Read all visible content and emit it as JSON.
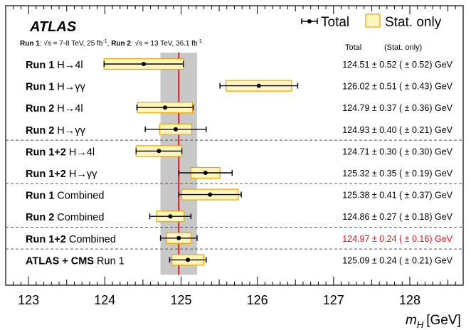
{
  "chart_data": {
    "type": "scatter",
    "title": "ATLAS",
    "subtitle": {
      "run1_label": "Run 1",
      "run1_conditions": ": √s = 7-8 TeV, 25 fb",
      "run2_label": "Run 2",
      "run2_conditions": ": √s = 13 TeV, 36.1 fb",
      "lumi_superscript": "-1"
    },
    "legend": {
      "total": "Total",
      "stat_only": "Stat. only",
      "placement": "top-right"
    },
    "column_headers": {
      "total": "Total",
      "stat": "(Stat. only)"
    },
    "xlabel_symbol": "m",
    "xlabel_subscript": "H",
    "xlabel_unit": "[GeV]",
    "xlim": [
      122.7,
      128.7
    ],
    "xticks": [
      123,
      124,
      125,
      126,
      127,
      128
    ],
    "xtick_labels": [
      "123",
      "124",
      "125",
      "126",
      "127",
      "128"
    ],
    "grid": false,
    "reference_value": 124.97,
    "reference_band": [
      124.73,
      125.21
    ],
    "rows": [
      {
        "label_bold": "Run 1",
        "label_rest": " H→4l",
        "mass": 124.51,
        "total_err": 0.52,
        "stat_err": 0.52,
        "result_text": "124.51 ± 0.52 ( ± 0.52) GeV"
      },
      {
        "label_bold": "Run 1",
        "label_rest": " H→γγ",
        "mass": 126.02,
        "total_err": 0.51,
        "stat_err": 0.43,
        "result_text": "126.02 ± 0.51 ( ± 0.43) GeV"
      },
      {
        "label_bold": "Run 2",
        "label_rest": " H→4l",
        "mass": 124.79,
        "total_err": 0.37,
        "stat_err": 0.36,
        "result_text": "124.79 ± 0.37 ( ± 0.36) GeV"
      },
      {
        "label_bold": "Run 2",
        "label_rest": " H→γγ",
        "mass": 124.93,
        "total_err": 0.4,
        "stat_err": 0.21,
        "result_text": "124.93 ± 0.40 ( ± 0.21) GeV"
      },
      {
        "label_bold": "Run 1+2",
        "label_rest": " H→4l",
        "mass": 124.71,
        "total_err": 0.3,
        "stat_err": 0.3,
        "result_text": "124.71 ± 0.30 ( ± 0.30) GeV"
      },
      {
        "label_bold": "Run 1+2",
        "label_rest": " H→γγ",
        "mass": 125.32,
        "total_err": 0.35,
        "stat_err": 0.19,
        "result_text": "125.32 ± 0.35 ( ± 0.19) GeV"
      },
      {
        "label_bold": "Run 1",
        "label_rest": " Combined",
        "mass": 125.38,
        "total_err": 0.41,
        "stat_err": 0.37,
        "result_text": "125.38 ± 0.41 ( ± 0.37) GeV"
      },
      {
        "label_bold": "Run 2",
        "label_rest": " Combined",
        "mass": 124.86,
        "total_err": 0.27,
        "stat_err": 0.18,
        "result_text": "124.86 ± 0.27 ( ± 0.18) GeV"
      },
      {
        "label_bold": "Run 1+2",
        "label_rest": " Combined",
        "mass": 124.97,
        "total_err": 0.24,
        "stat_err": 0.16,
        "result_text": "124.97 ± 0.24 ( ± 0.16) GeV",
        "highlight": true
      },
      {
        "label_bold": "ATLAS + CMS",
        "label_rest": " Run 1",
        "mass": 125.09,
        "total_err": 0.24,
        "stat_err": 0.21,
        "result_text": "125.09 ± 0.24 ( ± 0.21) GeV"
      }
    ],
    "separators_after_rows": [
      3,
      5,
      7,
      8
    ],
    "colors": {
      "stat_box_fill": "#fff5bd",
      "stat_box_stroke": "#e6a800",
      "reference_line": "#e8141c",
      "reference_band": "#c8c8c8",
      "highlight_text": "#e8141c",
      "text": "#000000"
    }
  }
}
